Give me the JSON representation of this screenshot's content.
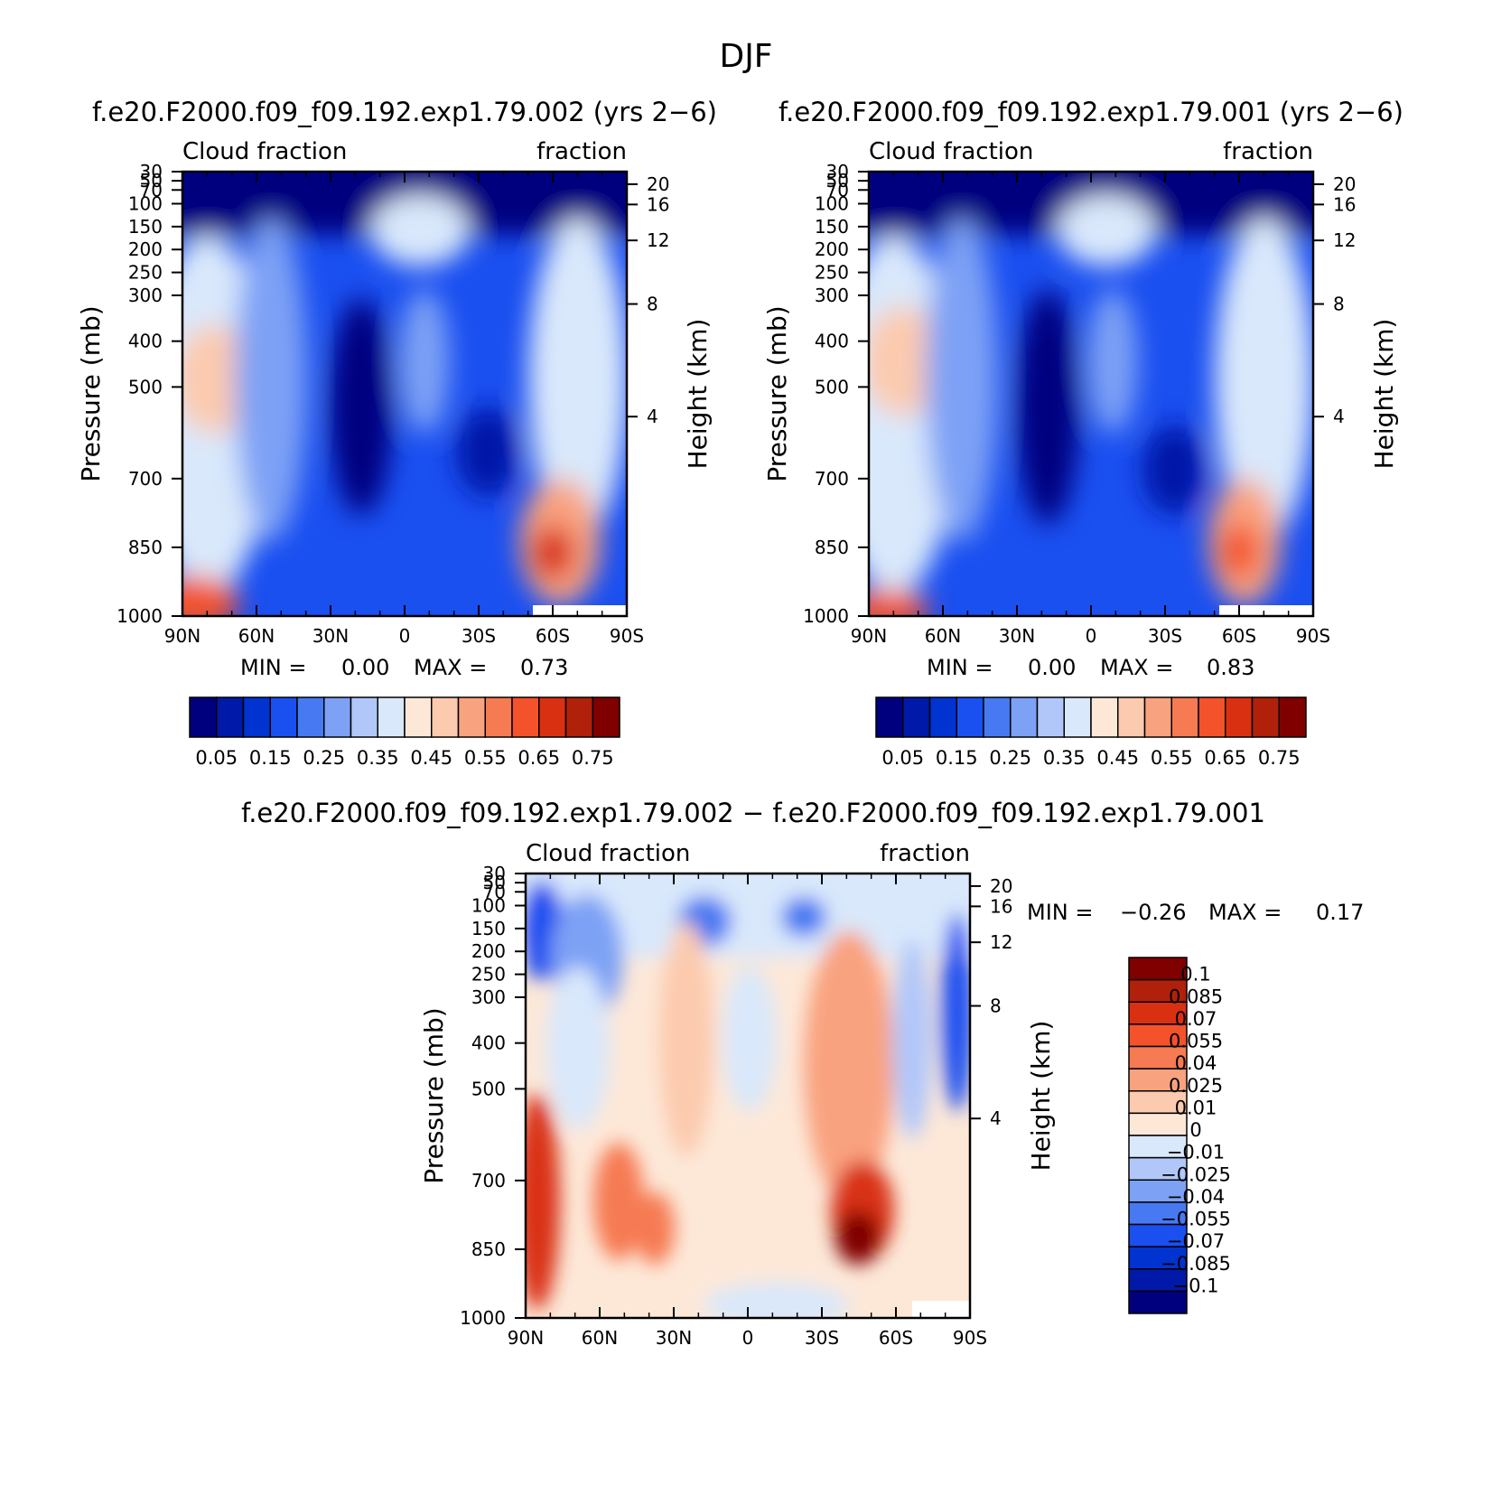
{
  "figure": {
    "title": "DJF"
  },
  "chart_data": [
    {
      "type": "heatmap",
      "title": "f.e20.F2000.f09_f09.192.exp1.79.002 (yrs 2−6)",
      "subtitle_left": "Cloud fraction",
      "subtitle_right": "fraction",
      "ylabel": "Pressure (mb)",
      "ylabel_right": "Height (km)",
      "x_ticks": [
        "90N",
        "60N",
        "30N",
        "0",
        "30S",
        "60S",
        "90S"
      ],
      "y_ticks": [
        "30",
        "50",
        "70",
        "100",
        "150",
        "200",
        "250",
        "300",
        "400",
        "500",
        "700",
        "850",
        "1000"
      ],
      "y_ticks_right": [
        "20",
        "16",
        "12",
        "8",
        "4"
      ],
      "ylim": [
        1000,
        30
      ],
      "min_label": "MIN =",
      "min_value": "0.00",
      "max_label": "MAX =",
      "max_value": "0.73",
      "colorbar_labels": [
        "0.05",
        "0.15",
        "0.25",
        "0.35",
        "0.45",
        "0.55",
        "0.65",
        "0.75"
      ],
      "colors": [
        "#00007f",
        "#0019a8",
        "#0033d0",
        "#1a4ff0",
        "#4679f2",
        "#7da1f5",
        "#b1c7f9",
        "#d9e8fb",
        "#fde8d8",
        "#fccaae",
        "#f9a27f",
        "#f67a52",
        "#f3522a",
        "#d93012",
        "#b0200a",
        "#800000"
      ]
    },
    {
      "type": "heatmap",
      "title": "f.e20.F2000.f09_f09.192.exp1.79.001 (yrs 2−6)",
      "subtitle_left": "Cloud fraction",
      "subtitle_right": "fraction",
      "ylabel": "Pressure (mb)",
      "ylabel_right": "Height (km)",
      "x_ticks": [
        "90N",
        "60N",
        "30N",
        "0",
        "30S",
        "60S",
        "90S"
      ],
      "y_ticks": [
        "30",
        "50",
        "70",
        "100",
        "150",
        "200",
        "250",
        "300",
        "400",
        "500",
        "700",
        "850",
        "1000"
      ],
      "y_ticks_right": [
        "20",
        "16",
        "12",
        "8",
        "4"
      ],
      "ylim": [
        1000,
        30
      ],
      "min_label": "MIN =",
      "min_value": "0.00",
      "max_label": "MAX =",
      "max_value": "0.83",
      "colorbar_labels": [
        "0.05",
        "0.15",
        "0.25",
        "0.35",
        "0.45",
        "0.55",
        "0.65",
        "0.75"
      ],
      "colors": [
        "#00007f",
        "#0019a8",
        "#0033d0",
        "#1a4ff0",
        "#4679f2",
        "#7da1f5",
        "#b1c7f9",
        "#d9e8fb",
        "#fde8d8",
        "#fccaae",
        "#f9a27f",
        "#f67a52",
        "#f3522a",
        "#d93012",
        "#b0200a",
        "#800000"
      ]
    },
    {
      "type": "heatmap",
      "title": "f.e20.F2000.f09_f09.192.exp1.79.002 − f.e20.F2000.f09_f09.192.exp1.79.001",
      "subtitle_left": "Cloud fraction",
      "subtitle_right": "fraction",
      "ylabel": "Pressure (mb)",
      "ylabel_right": "Height (km)",
      "x_ticks": [
        "90N",
        "60N",
        "30N",
        "0",
        "30S",
        "60S",
        "90S"
      ],
      "y_ticks": [
        "30",
        "50",
        "70",
        "100",
        "150",
        "200",
        "250",
        "300",
        "400",
        "500",
        "700",
        "850",
        "1000"
      ],
      "y_ticks_right": [
        "20",
        "16",
        "12",
        "8",
        "4"
      ],
      "ylim": [
        1000,
        30
      ],
      "min_label": "MIN =",
      "min_value": "−0.26",
      "max_label": "MAX =",
      "max_value": "0.17",
      "colorbar_labels": [
        "0.1",
        "0.085",
        "0.07",
        "0.055",
        "0.04",
        "0.025",
        "0.01",
        "0",
        "−0.01",
        "−0.025",
        "−0.04",
        "−0.055",
        "−0.07",
        "−0.085",
        "−0.1"
      ],
      "colors": [
        "#800000",
        "#b0200a",
        "#d93012",
        "#f3522a",
        "#f67a52",
        "#f9a27f",
        "#fccaae",
        "#fde8d8",
        "#d9e8fb",
        "#b1c7f9",
        "#7da1f5",
        "#4679f2",
        "#1a4ff0",
        "#0033d0",
        "#0019a8",
        "#00007f"
      ]
    }
  ]
}
